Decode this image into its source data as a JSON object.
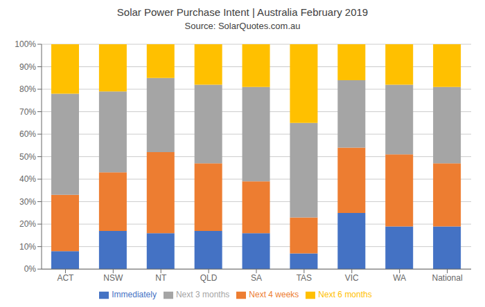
{
  "chart_data": {
    "type": "bar",
    "title": "Solar Power Purchase Intent | Australia February 2019",
    "subtitle": "Source: SolarQuotes.com.au",
    "categories": [
      "ACT",
      "NSW",
      "NT",
      "QLD",
      "SA",
      "TAS",
      "VIC",
      "WA",
      "National"
    ],
    "series": [
      {
        "name": "Immediately",
        "color": "#4472C4",
        "values": [
          8,
          17,
          16,
          17,
          16,
          7,
          25,
          19,
          19
        ]
      },
      {
        "name": "Next 4 weeks",
        "color": "#ED7D31",
        "values": [
          25,
          26,
          36,
          30,
          23,
          16,
          29,
          32,
          28
        ]
      },
      {
        "name": "Next 3 months",
        "color": "#A5A5A5",
        "values": [
          45,
          36,
          33,
          35,
          42,
          42,
          30,
          31,
          34
        ]
      },
      {
        "name": "Next 6 months",
        "color": "#FFC000",
        "values": [
          22,
          21,
          15,
          18,
          19,
          35,
          16,
          18,
          19
        ]
      }
    ],
    "stacked": true,
    "ylim": [
      0,
      100
    ],
    "yticks": [
      {
        "value": 0,
        "label": "0%"
      },
      {
        "value": 10,
        "label": "10%"
      },
      {
        "value": 20,
        "label": "20%"
      },
      {
        "value": 30,
        "label": "30%"
      },
      {
        "value": 40,
        "label": "40%"
      },
      {
        "value": 50,
        "label": "50%"
      },
      {
        "value": 60,
        "label": "60%"
      },
      {
        "value": 70,
        "label": "70%"
      },
      {
        "value": 80,
        "label": "80%"
      },
      {
        "value": 90,
        "label": "90%"
      },
      {
        "value": 100,
        "label": "100%"
      }
    ],
    "grid": true,
    "legend": "bottom"
  }
}
